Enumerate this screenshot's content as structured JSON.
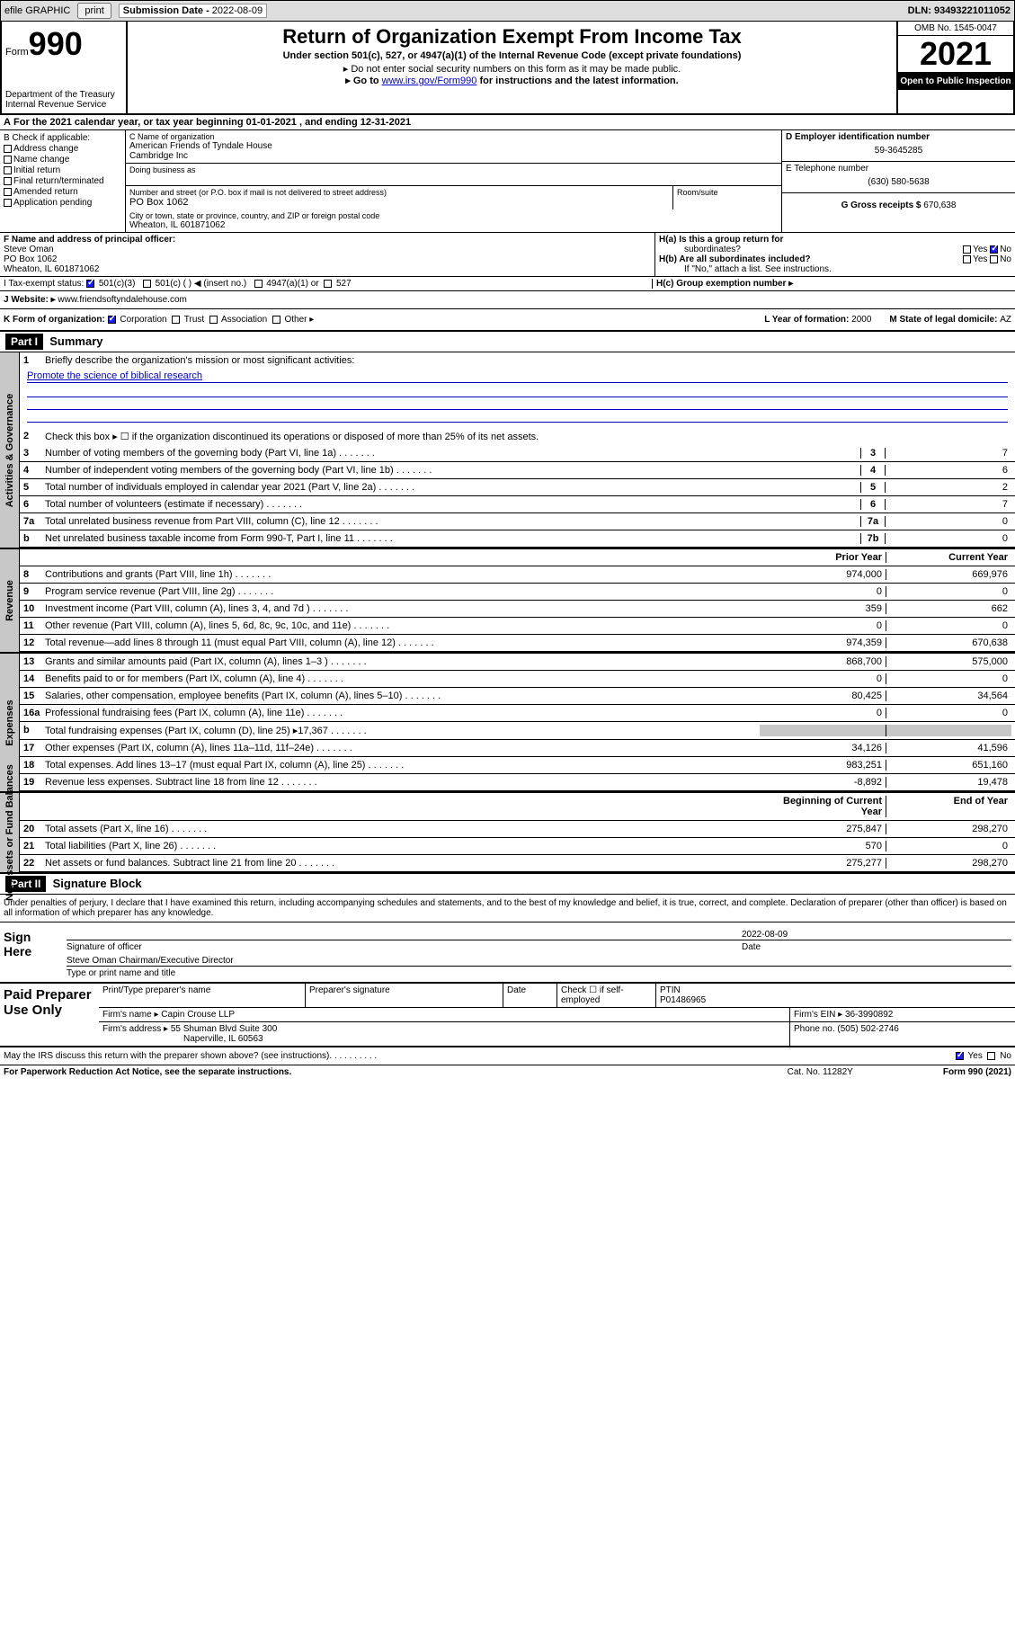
{
  "topbar": {
    "efile": "efile GRAPHIC",
    "print": "print",
    "subdate_label": "Submission Date - ",
    "subdate": "2022-08-09",
    "dln_label": "DLN: ",
    "dln": "93493221011052"
  },
  "header": {
    "form_label": "Form",
    "form_no": "990",
    "dept": "Department of the Treasury",
    "irs": "Internal Revenue Service",
    "title": "Return of Organization Exempt From Income Tax",
    "sub": "Under section 501(c), 527, or 4947(a)(1) of the Internal Revenue Code (except private foundations)",
    "note1": "▸ Do not enter social security numbers on this form as it may be made public.",
    "note2_a": "▸ Go to ",
    "note2_link": "www.irs.gov/Form990",
    "note2_b": " for instructions and the latest information.",
    "omb": "OMB No. 1545-0047",
    "year": "2021",
    "open": "Open to Public Inspection"
  },
  "secA": {
    "text_a": "For the 2021 calendar year, or tax year beginning ",
    "begin": "01-01-2021",
    "text_b": " , and ending ",
    "end": "12-31-2021"
  },
  "secB": {
    "label": "B Check if applicable:",
    "opts": [
      "Address change",
      "Name change",
      "Initial return",
      "Final return/terminated",
      "Amended return",
      "Application pending"
    ]
  },
  "secC": {
    "name_label": "C Name of organization",
    "name1": "American Friends of Tyndale House",
    "name2": "Cambridge Inc",
    "dba_label": "Doing business as",
    "addr_label": "Number and street (or P.O. box if mail is not delivered to street address)",
    "room_label": "Room/suite",
    "addr": "PO Box 1062",
    "city_label": "City or town, state or province, country, and ZIP or foreign postal code",
    "city": "Wheaton, IL  601871062"
  },
  "secD": {
    "ein_label": "D Employer identification number",
    "ein": "59-3645285",
    "phone_label": "E Telephone number",
    "phone": "(630) 580-5638",
    "gross_label": "G Gross receipts $ ",
    "gross": "670,638"
  },
  "secF": {
    "label": "F Name and address of principal officer:",
    "name": "Steve Oman",
    "addr1": "PO Box 1062",
    "addr2": "Wheaton, IL  601871062"
  },
  "secH": {
    "a_label": "H(a)  Is this a group return for",
    "a_sub": "subordinates?",
    "b_label": "H(b)  Are all subordinates included?",
    "b_note": "If \"No,\" attach a list. See instructions.",
    "c_label": "H(c)  Group exemption number ▸",
    "yes": "Yes",
    "no": "No"
  },
  "secI": {
    "label": "I    Tax-exempt status:",
    "o1": "501(c)(3)",
    "o2": "501(c) (  ) ◀ (insert no.)",
    "o3": "4947(a)(1) or",
    "o4": "527"
  },
  "secJ": {
    "label": "J    Website: ▸",
    "url": "www.friendsoftyndalehouse.com"
  },
  "secK": {
    "label": "K Form of organization:",
    "o1": "Corporation",
    "o2": "Trust",
    "o3": "Association",
    "o4": "Other ▸"
  },
  "secL": {
    "label": "L Year of formation: ",
    "val": "2000"
  },
  "secM": {
    "label": "M State of legal domicile: ",
    "val": "AZ"
  },
  "part1": {
    "hdr": "Part I",
    "title": "Summary",
    "tabs": [
      "Activities & Governance",
      "Revenue",
      "Expenses",
      "Net Assets or Fund Balances"
    ],
    "l1_label": "Briefly describe the organization's mission or most significant activities:",
    "l1_text": "Promote the science of biblical research",
    "l2": "Check this box ▸ ☐ if the organization discontinued its operations or disposed of more than 25% of its net assets.",
    "rows_gov": [
      {
        "n": "3",
        "t": "Number of voting members of the governing body (Part VI, line 1a)",
        "nn": "3",
        "v": "7"
      },
      {
        "n": "4",
        "t": "Number of independent voting members of the governing body (Part VI, line 1b)",
        "nn": "4",
        "v": "6"
      },
      {
        "n": "5",
        "t": "Total number of individuals employed in calendar year 2021 (Part V, line 2a)",
        "nn": "5",
        "v": "2"
      },
      {
        "n": "6",
        "t": "Total number of volunteers (estimate if necessary)",
        "nn": "6",
        "v": "7"
      },
      {
        "n": "7a",
        "t": "Total unrelated business revenue from Part VIII, column (C), line 12",
        "nn": "7a",
        "v": "0"
      },
      {
        "n": "b",
        "t": "Net unrelated business taxable income from Form 990-T, Part I, line 11",
        "nn": "7b",
        "v": "0"
      }
    ],
    "hdr_prior": "Prior Year",
    "hdr_curr": "Current Year",
    "rows_rev": [
      {
        "n": "8",
        "t": "Contributions and grants (Part VIII, line 1h)",
        "p": "974,000",
        "c": "669,976"
      },
      {
        "n": "9",
        "t": "Program service revenue (Part VIII, line 2g)",
        "p": "0",
        "c": "0"
      },
      {
        "n": "10",
        "t": "Investment income (Part VIII, column (A), lines 3, 4, and 7d )",
        "p": "359",
        "c": "662"
      },
      {
        "n": "11",
        "t": "Other revenue (Part VIII, column (A), lines 5, 6d, 8c, 9c, 10c, and 11e)",
        "p": "0",
        "c": "0"
      },
      {
        "n": "12",
        "t": "Total revenue—add lines 8 through 11 (must equal Part VIII, column (A), line 12)",
        "p": "974,359",
        "c": "670,638"
      }
    ],
    "rows_exp": [
      {
        "n": "13",
        "t": "Grants and similar amounts paid (Part IX, column (A), lines 1–3 )",
        "p": "868,700",
        "c": "575,000"
      },
      {
        "n": "14",
        "t": "Benefits paid to or for members (Part IX, column (A), line 4)",
        "p": "0",
        "c": "0"
      },
      {
        "n": "15",
        "t": "Salaries, other compensation, employee benefits (Part IX, column (A), lines 5–10)",
        "p": "80,425",
        "c": "34,564"
      },
      {
        "n": "16a",
        "t": "Professional fundraising fees (Part IX, column (A), line 11e)",
        "p": "0",
        "c": "0"
      },
      {
        "n": "b",
        "t": "Total fundraising expenses (Part IX, column (D), line 25) ▸17,367",
        "p": "",
        "c": "",
        "shade": true
      },
      {
        "n": "17",
        "t": "Other expenses (Part IX, column (A), lines 11a–11d, 11f–24e)",
        "p": "34,126",
        "c": "41,596"
      },
      {
        "n": "18",
        "t": "Total expenses. Add lines 13–17 (must equal Part IX, column (A), line 25)",
        "p": "983,251",
        "c": "651,160"
      },
      {
        "n": "19",
        "t": "Revenue less expenses. Subtract line 18 from line 12",
        "p": "-8,892",
        "c": "19,478"
      }
    ],
    "hdr_begin": "Beginning of Current Year",
    "hdr_end": "End of Year",
    "rows_net": [
      {
        "n": "20",
        "t": "Total assets (Part X, line 16)",
        "p": "275,847",
        "c": "298,270"
      },
      {
        "n": "21",
        "t": "Total liabilities (Part X, line 26)",
        "p": "570",
        "c": "0"
      },
      {
        "n": "22",
        "t": "Net assets or fund balances. Subtract line 21 from line 20",
        "p": "275,277",
        "c": "298,270"
      }
    ]
  },
  "part2": {
    "hdr": "Part II",
    "title": "Signature Block",
    "decl": "Under penalties of perjury, I declare that I have examined this return, including accompanying schedules and statements, and to the best of my knowledge and belief, it is true, correct, and complete. Declaration of preparer (other than officer) is based on all information of which preparer has any knowledge.",
    "sign_here": "Sign Here",
    "sig_officer": "Signature of officer",
    "sig_date": "Date",
    "sig_date_val": "2022-08-09",
    "officer": "Steve Oman  Chairman/Executive Director",
    "type_name": "Type or print name and title"
  },
  "prep": {
    "label": "Paid Preparer Use Only",
    "h1": "Print/Type preparer's name",
    "h2": "Preparer's signature",
    "h3": "Date",
    "h4_a": "Check ☐ if self-employed",
    "h5": "PTIN",
    "ptin": "P01486965",
    "firm_label": "Firm's name    ▸ ",
    "firm": "Capin Crouse LLP",
    "ein_label": "Firm's EIN ▸ ",
    "ein": "36-3990892",
    "addr_label": "Firm's address ▸ ",
    "addr1": "55 Shuman Blvd Suite 300",
    "addr2": "Naperville, IL  60563",
    "phone_label": "Phone no. ",
    "phone": "(505) 502-2746"
  },
  "irs_discuss": "May the IRS discuss this return with the preparer shown above? (see instructions)",
  "footer": {
    "l": "For Paperwork Reduction Act Notice, see the separate instructions.",
    "c": "Cat. No. 11282Y",
    "r": "Form 990 (2021)"
  }
}
